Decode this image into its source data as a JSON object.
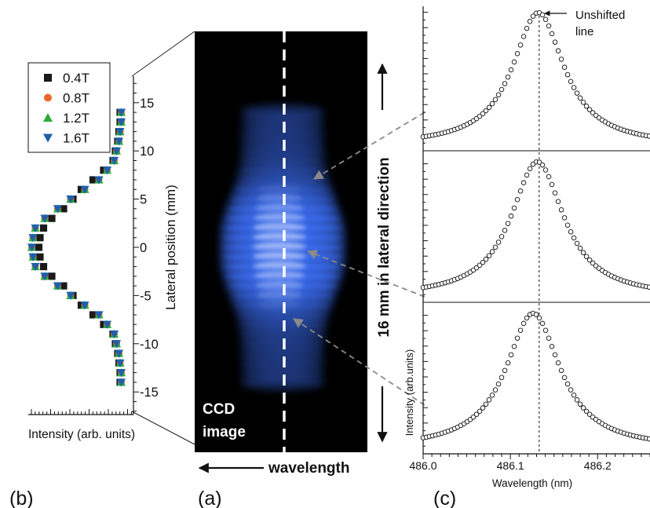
{
  "panel_labels": {
    "a": "(a)",
    "b": "(b)",
    "c": "(c)"
  },
  "ccd": {
    "line1": "CCD",
    "line2": "image",
    "wavelength_label": "wavelength",
    "lateral_label": "16 mm in lateral direction"
  },
  "annotation": {
    "unshifted_line1": "Unshifted",
    "unshifted_line2": "line"
  },
  "colors": {
    "s04": "#1a1a1a",
    "s08": "#e8682a",
    "s12": "#2daa3c",
    "s16": "#1f5faa",
    "ccd_glow": "#3a6cf0"
  },
  "chart_data": [
    {
      "type": "scatter",
      "panel": "b",
      "xlabel": "Intensity (arb. units)",
      "ylabel": "Lateral position (mm)",
      "ylim": [
        -17.5,
        17.5
      ],
      "yticks": [
        -15,
        -10,
        -5,
        0,
        5,
        10,
        15
      ],
      "ytick_labels": [
        "-15",
        "-10",
        "-5",
        "0",
        "5",
        "10",
        "15"
      ],
      "legend_position": "top-left",
      "series": [
        {
          "name": "0.4T",
          "marker": "square",
          "points": [
            [
              0.78,
              14
            ],
            [
              0.78,
              13
            ],
            [
              0.77,
              12
            ],
            [
              0.76,
              11
            ],
            [
              0.74,
              10
            ],
            [
              0.72,
              9
            ],
            [
              0.64,
              8
            ],
            [
              0.55,
              7
            ],
            [
              0.45,
              6
            ],
            [
              0.38,
              5
            ],
            [
              0.3,
              4
            ],
            [
              0.2,
              3
            ],
            [
              0.13,
              2
            ],
            [
              0.1,
              1
            ],
            [
              0.09,
              0
            ],
            [
              0.1,
              -1
            ],
            [
              0.13,
              -2
            ],
            [
              0.2,
              -3
            ],
            [
              0.3,
              -4
            ],
            [
              0.38,
              -5
            ],
            [
              0.45,
              -6
            ],
            [
              0.55,
              -7
            ],
            [
              0.64,
              -8
            ],
            [
              0.72,
              -9
            ],
            [
              0.74,
              -10
            ],
            [
              0.76,
              -11
            ],
            [
              0.77,
              -12
            ],
            [
              0.78,
              -13
            ],
            [
              0.78,
              -14
            ]
          ]
        },
        {
          "name": "0.8T",
          "marker": "circle",
          "points": [
            [
              0.79,
              14
            ],
            [
              0.79,
              13
            ],
            [
              0.78,
              12
            ],
            [
              0.77,
              11
            ],
            [
              0.75,
              10
            ],
            [
              0.73,
              9
            ],
            [
              0.67,
              8
            ],
            [
              0.6,
              7
            ],
            [
              0.48,
              6
            ],
            [
              0.36,
              5
            ],
            [
              0.25,
              4
            ],
            [
              0.14,
              3
            ],
            [
              0.06,
              2
            ],
            [
              0.04,
              1
            ],
            [
              0.03,
              0
            ],
            [
              0.04,
              -1
            ],
            [
              0.06,
              -2
            ],
            [
              0.14,
              -3
            ],
            [
              0.25,
              -4
            ],
            [
              0.36,
              -5
            ],
            [
              0.48,
              -6
            ],
            [
              0.6,
              -7
            ],
            [
              0.67,
              -8
            ],
            [
              0.73,
              -9
            ],
            [
              0.75,
              -10
            ],
            [
              0.77,
              -11
            ],
            [
              0.78,
              -12
            ],
            [
              0.79,
              -13
            ],
            [
              0.79,
              -14
            ]
          ]
        },
        {
          "name": "1.2T",
          "marker": "triangle-up",
          "points": [
            [
              0.79,
              14
            ],
            [
              0.79,
              13
            ],
            [
              0.78,
              12
            ],
            [
              0.77,
              11
            ],
            [
              0.75,
              10
            ],
            [
              0.73,
              9
            ],
            [
              0.67,
              8
            ],
            [
              0.6,
              7
            ],
            [
              0.48,
              6
            ],
            [
              0.36,
              5
            ],
            [
              0.25,
              4
            ],
            [
              0.14,
              3
            ],
            [
              0.06,
              2
            ],
            [
              0.04,
              1
            ],
            [
              0.03,
              0
            ],
            [
              0.04,
              -1
            ],
            [
              0.06,
              -2
            ],
            [
              0.14,
              -3
            ],
            [
              0.25,
              -4
            ],
            [
              0.36,
              -5
            ],
            [
              0.48,
              -6
            ],
            [
              0.6,
              -7
            ],
            [
              0.67,
              -8
            ],
            [
              0.73,
              -9
            ],
            [
              0.75,
              -10
            ],
            [
              0.77,
              -11
            ],
            [
              0.78,
              -12
            ],
            [
              0.79,
              -13
            ],
            [
              0.79,
              -14
            ]
          ]
        },
        {
          "name": "1.6T",
          "marker": "triangle-down",
          "points": [
            [
              0.79,
              14
            ],
            [
              0.79,
              13
            ],
            [
              0.78,
              12
            ],
            [
              0.77,
              11
            ],
            [
              0.75,
              10
            ],
            [
              0.73,
              9
            ],
            [
              0.67,
              8
            ],
            [
              0.6,
              7
            ],
            [
              0.48,
              6
            ],
            [
              0.36,
              5
            ],
            [
              0.25,
              4
            ],
            [
              0.14,
              3
            ],
            [
              0.06,
              2
            ],
            [
              0.04,
              1
            ],
            [
              0.03,
              0
            ],
            [
              0.04,
              -1
            ],
            [
              0.06,
              -2
            ],
            [
              0.14,
              -3
            ],
            [
              0.25,
              -4
            ],
            [
              0.36,
              -5
            ],
            [
              0.48,
              -6
            ],
            [
              0.6,
              -7
            ],
            [
              0.67,
              -8
            ],
            [
              0.73,
              -9
            ],
            [
              0.75,
              -10
            ],
            [
              0.77,
              -11
            ],
            [
              0.78,
              -12
            ],
            [
              0.79,
              -13
            ],
            [
              0.79,
              -14
            ]
          ]
        }
      ]
    },
    {
      "type": "scatter",
      "panel": "c",
      "stacked_subplots": 3,
      "xlabel": "Wavelength (nm)",
      "ylabel": "Intensity (arb.units)",
      "xlim": [
        486.0,
        486.26
      ],
      "xticks": [
        486.0,
        486.1,
        486.2
      ],
      "xtick_labels": [
        "486.0",
        "486.1",
        "486.2"
      ],
      "unshifted_line_x": 486.133,
      "profiles": [
        {
          "peak_x": 486.132,
          "half_width": 0.036
        },
        {
          "peak_x": 486.131,
          "half_width": 0.037
        },
        {
          "peak_x": 486.126,
          "half_width": 0.038
        }
      ]
    }
  ]
}
